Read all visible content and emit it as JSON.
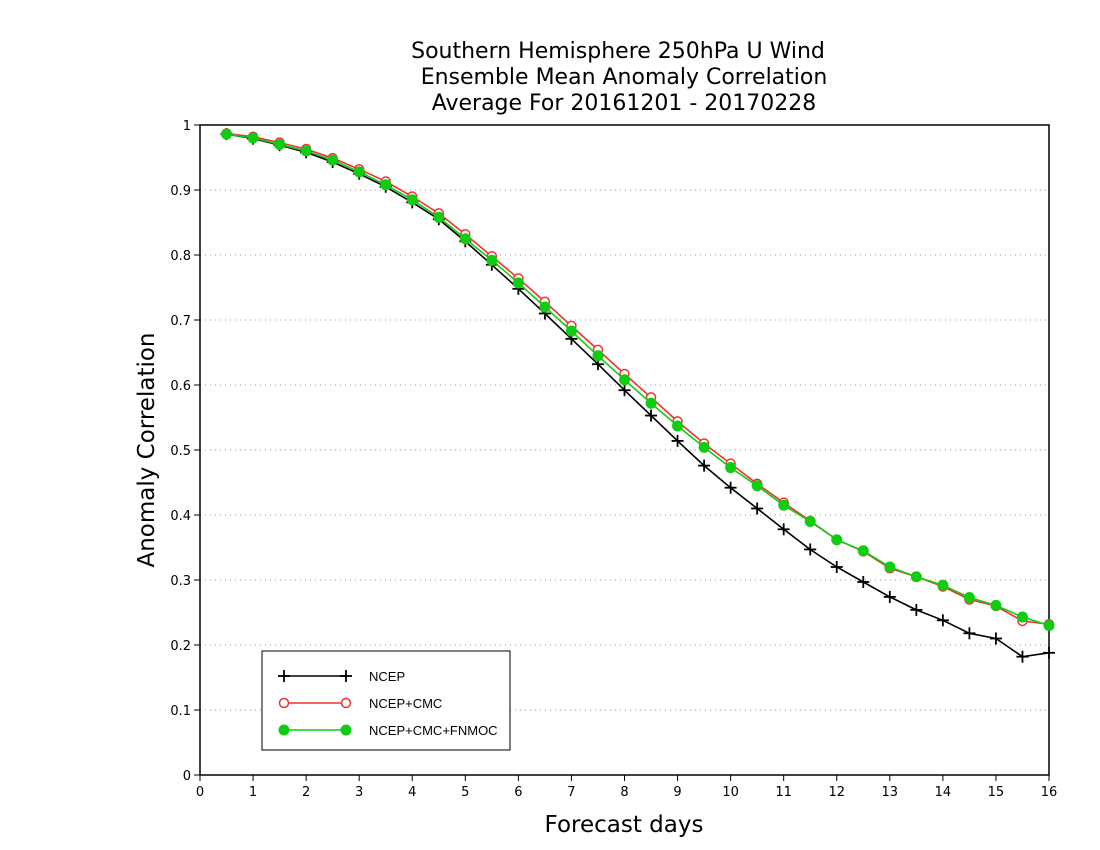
{
  "chart_data": {
    "type": "line",
    "title_lines": [
      "Southern Hemisphere 250hPa U Wind",
      "Ensemble Mean Anomaly Correlation",
      "Average For 20161201 - 20170228"
    ],
    "xlabel": "Forecast days",
    "ylabel": "Anomaly Correlation",
    "xlim": [
      0,
      16
    ],
    "ylim": [
      0,
      1
    ],
    "x_ticks": [
      "0",
      "1",
      "2",
      "3",
      "4",
      "5",
      "6",
      "7",
      "8",
      "9",
      "10",
      "11",
      "12",
      "13",
      "14",
      "15",
      "16"
    ],
    "y_ticks": [
      "0",
      "0.1",
      "0.2",
      "0.3",
      "0.4",
      "0.5",
      "0.6",
      "0.7",
      "0.8",
      "0.9",
      "1"
    ],
    "grid": "horizontal dotted",
    "legend_position": "bottom-left",
    "x": [
      0.5,
      1,
      1.5,
      2,
      2.5,
      3,
      3.5,
      4,
      4.5,
      5,
      5.5,
      6,
      6.5,
      7,
      7.5,
      8,
      8.5,
      9,
      9.5,
      10,
      10.5,
      11,
      11.5,
      12,
      12.5,
      13,
      13.5,
      14,
      14.5,
      15,
      15.5,
      16
    ],
    "series": [
      {
        "name": "NCEP",
        "color": "#000000",
        "marker": "plus",
        "values": [
          0.986,
          0.979,
          0.969,
          0.958,
          0.943,
          0.925,
          0.905,
          0.881,
          0.855,
          0.821,
          0.785,
          0.748,
          0.71,
          0.671,
          0.632,
          0.592,
          0.553,
          0.514,
          0.476,
          0.442,
          0.41,
          0.378,
          0.347,
          0.32,
          0.297,
          0.274,
          0.254,
          0.238,
          0.218,
          0.21,
          0.182,
          0.188
        ]
      },
      {
        "name": "NCEP+CMC",
        "color": "#ee3333",
        "marker": "open-circle",
        "values": [
          0.987,
          0.982,
          0.973,
          0.963,
          0.949,
          0.932,
          0.913,
          0.89,
          0.864,
          0.832,
          0.798,
          0.764,
          0.728,
          0.691,
          0.654,
          0.617,
          0.581,
          0.544,
          0.51,
          0.479,
          0.448,
          0.419,
          0.391,
          0.362,
          0.344,
          0.318,
          0.305,
          0.29,
          0.27,
          0.26,
          0.237,
          0.232
        ]
      },
      {
        "name": "NCEP+CMC+FNMOC",
        "color": "#11cc11",
        "marker": "filled-circle",
        "values": [
          0.986,
          0.98,
          0.97,
          0.96,
          0.946,
          0.928,
          0.908,
          0.885,
          0.858,
          0.825,
          0.792,
          0.757,
          0.72,
          0.683,
          0.645,
          0.608,
          0.572,
          0.537,
          0.504,
          0.473,
          0.445,
          0.415,
          0.39,
          0.362,
          0.345,
          0.32,
          0.305,
          0.292,
          0.273,
          0.261,
          0.243,
          0.23
        ]
      }
    ]
  }
}
